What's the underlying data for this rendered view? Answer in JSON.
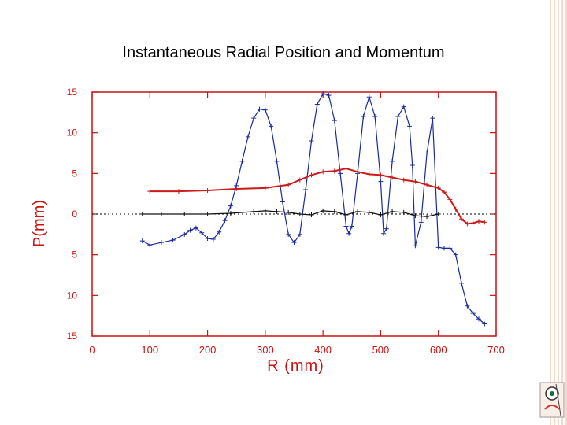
{
  "title": "Instantaneous Radial Position and Momentum",
  "chart_data": {
    "type": "scatter",
    "title": "Instantaneous Radial Position and Momentum",
    "xlabel": "R  (mm)",
    "ylabel": "P(mm)",
    "xlim": [
      0,
      700
    ],
    "ylim": [
      -15,
      15
    ],
    "xticks": [
      0,
      100,
      200,
      300,
      400,
      500,
      600,
      700
    ],
    "yticks": [
      15,
      10,
      5,
      0,
      -5,
      -10,
      -15
    ],
    "yticklabels": [
      "15",
      "10",
      "5",
      "0",
      "5",
      "10",
      "15"
    ],
    "zero_line": true,
    "colors": {
      "axis": "#cc1111",
      "blue": "#1a2a9c",
      "red": "#cc1a1a",
      "black": "#111111"
    },
    "series": [
      {
        "name": "blue",
        "color": "#1a2a9c",
        "x": [
          87,
          100,
          120,
          140,
          160,
          170,
          180,
          190,
          200,
          210,
          220,
          230,
          240,
          250,
          260,
          270,
          280,
          290,
          300,
          310,
          320,
          330,
          340,
          350,
          360,
          370,
          380,
          390,
          400,
          410,
          420,
          430,
          440,
          445,
          450,
          460,
          470,
          480,
          490,
          500,
          505,
          510,
          520,
          530,
          540,
          550,
          555,
          560,
          570,
          580,
          590,
          600,
          610,
          620,
          630,
          640,
          650,
          660,
          670,
          680
        ],
        "y": [
          -3.3,
          -3.8,
          -3.5,
          -3.2,
          -2.5,
          -2,
          -1.7,
          -2.3,
          -3,
          -3.1,
          -2.2,
          -0.8,
          1,
          3.5,
          6.5,
          9.5,
          11.8,
          12.9,
          12.8,
          10.8,
          6.5,
          1.5,
          -2.5,
          -3.5,
          -2.5,
          3,
          9,
          13.5,
          14.8,
          14.6,
          11.5,
          5,
          -1.5,
          -2.4,
          -1.5,
          5,
          12,
          14.4,
          12,
          4,
          -2.4,
          -1.8,
          6.5,
          12,
          13.2,
          10.8,
          6,
          -3.9,
          -1,
          7.5,
          11.8,
          -4.1,
          -4.2,
          -4.2,
          -5,
          -8.5,
          -11.3,
          -12.2,
          -12.9,
          -13.5
        ]
      },
      {
        "name": "red",
        "color": "#cc1a1a",
        "x": [
          100,
          150,
          200,
          250,
          300,
          340,
          360,
          380,
          400,
          420,
          440,
          460,
          480,
          500,
          520,
          540,
          560,
          580,
          600,
          610,
          620,
          630,
          640,
          650,
          660,
          670,
          680
        ],
        "y": [
          2.8,
          2.8,
          2.9,
          3.1,
          3.2,
          3.6,
          4.2,
          4.8,
          5.2,
          5.3,
          5.6,
          5.2,
          4.9,
          4.8,
          4.5,
          4.2,
          4,
          3.6,
          3.2,
          2.7,
          1.8,
          0.6,
          -0.6,
          -1.2,
          -1.1,
          -0.9,
          -1
        ]
      },
      {
        "name": "black",
        "color": "#111111",
        "x": [
          87,
          120,
          160,
          200,
          240,
          280,
          300,
          320,
          340,
          360,
          380,
          400,
          420,
          440,
          460,
          480,
          500,
          520,
          540,
          560,
          580,
          600
        ],
        "y": [
          0,
          0,
          0,
          0,
          0.1,
          0.3,
          0.4,
          0.3,
          0.2,
          0,
          -0.1,
          0.4,
          0.3,
          -0.1,
          0.3,
          0.2,
          -0.1,
          0.3,
          0.2,
          -0.2,
          -0.3,
          0
        ]
      }
    ]
  }
}
